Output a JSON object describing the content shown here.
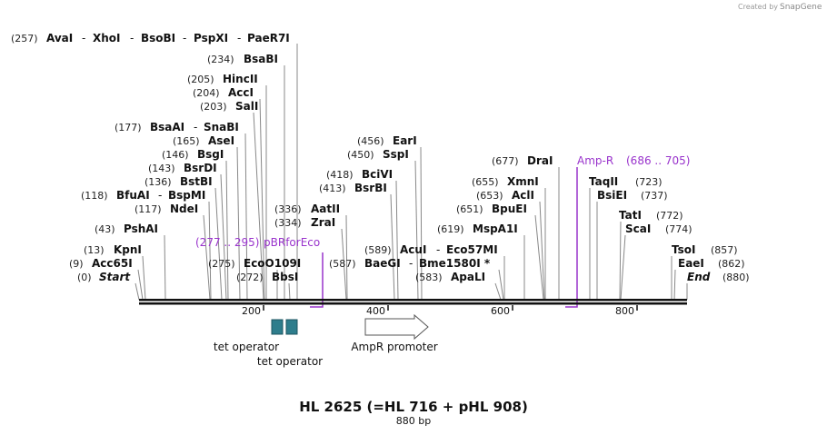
{
  "credit": {
    "text": "Created by",
    "brand": "SnapGene"
  },
  "map": {
    "title": "HL 2625 (=HL 716 + pHL 908)",
    "length_label": "880 bp",
    "total_bp": 880,
    "ticks": [
      "200",
      "400",
      "600",
      "800"
    ]
  },
  "sites": [
    {
      "label": "(257)",
      "names": [
        "AvaI",
        "XhoI",
        "BsoBI",
        "PspXI",
        "PaeR7I"
      ]
    },
    {
      "label": "(234)",
      "names": [
        "BsaBI"
      ]
    },
    {
      "label": "(205)",
      "names": [
        "HincII"
      ]
    },
    {
      "label": "(204)",
      "names": [
        "AccI"
      ]
    },
    {
      "label": "(203)",
      "names": [
        "SalI"
      ]
    },
    {
      "label": "(177)",
      "names": [
        "BsaAI",
        "SnaBI"
      ]
    },
    {
      "label": "(165)",
      "names": [
        "AseI"
      ]
    },
    {
      "label": "(146)",
      "names": [
        "BsgI"
      ]
    },
    {
      "label": "(143)",
      "names": [
        "BsrDI"
      ]
    },
    {
      "label": "(136)",
      "names": [
        "BstBI"
      ]
    },
    {
      "label": "(118)",
      "names": [
        "BfuAI",
        "BspMI"
      ]
    },
    {
      "label": "(117)",
      "names": [
        "NdeI"
      ]
    },
    {
      "label": "(43)",
      "names": [
        "PshAI"
      ]
    },
    {
      "label": "(13)",
      "names": [
        "KpnI"
      ]
    },
    {
      "label": "(9)",
      "names": [
        "Acc65I"
      ]
    },
    {
      "label": "(0)",
      "names": [
        "Start"
      ]
    },
    {
      "label": "(275)",
      "names": [
        "EcoO109I"
      ]
    },
    {
      "label": "(272)",
      "names": [
        "BbsI"
      ]
    },
    {
      "label": "(336)",
      "names": [
        "AatII"
      ]
    },
    {
      "label": "(334)",
      "names": [
        "ZraI"
      ]
    },
    {
      "label": "(456)",
      "names": [
        "EarI"
      ]
    },
    {
      "label": "(450)",
      "names": [
        "SspI"
      ]
    },
    {
      "label": "(418)",
      "names": [
        "BciVI"
      ]
    },
    {
      "label": "(413)",
      "names": [
        "BsrBI"
      ]
    },
    {
      "label": "(589)",
      "names": [
        "AcuI",
        "Eco57MI"
      ]
    },
    {
      "label": "(587)",
      "names": [
        "BaeGI",
        "Bme1580I *"
      ]
    },
    {
      "label": "(583)",
      "names": [
        "ApaLI"
      ]
    },
    {
      "label": "(677)",
      "names": [
        "DraI"
      ]
    },
    {
      "label": "(655)",
      "names": [
        "XmnI"
      ]
    },
    {
      "label": "(653)",
      "names": [
        "AclI"
      ]
    },
    {
      "label": "(651)",
      "names": [
        "BpuEI"
      ]
    },
    {
      "label": "(619)",
      "names": [
        "MspA1I"
      ]
    },
    {
      "label": "(723)",
      "names": [
        "TaqII"
      ]
    },
    {
      "label": "(737)",
      "names": [
        "BsiEI"
      ]
    },
    {
      "label": "(772)",
      "names": [
        "TatI"
      ]
    },
    {
      "label": "(774)",
      "names": [
        "ScaI"
      ]
    },
    {
      "label": "(857)",
      "names": [
        "TsoI"
      ]
    },
    {
      "label": "(862)",
      "names": [
        "EaeI"
      ]
    },
    {
      "label": "(880)",
      "names": [
        "End"
      ]
    }
  ],
  "primers": [
    {
      "name": "pBRforEco",
      "range": "(277 .. 295)"
    },
    {
      "name": "Amp-R",
      "range": "(686 .. 705)"
    }
  ],
  "features": [
    {
      "name": "tet operator",
      "type": "protein_bind",
      "color": "#2e7d8c"
    },
    {
      "name": "tet operator",
      "type": "protein_bind",
      "color": "#2e7d8c"
    },
    {
      "name": "AmpR promoter",
      "type": "promoter",
      "color": "#ffffff"
    }
  ],
  "colors": {
    "primer": "#9933cc",
    "feature": "#2e7d8c",
    "backbone": "#111111"
  }
}
